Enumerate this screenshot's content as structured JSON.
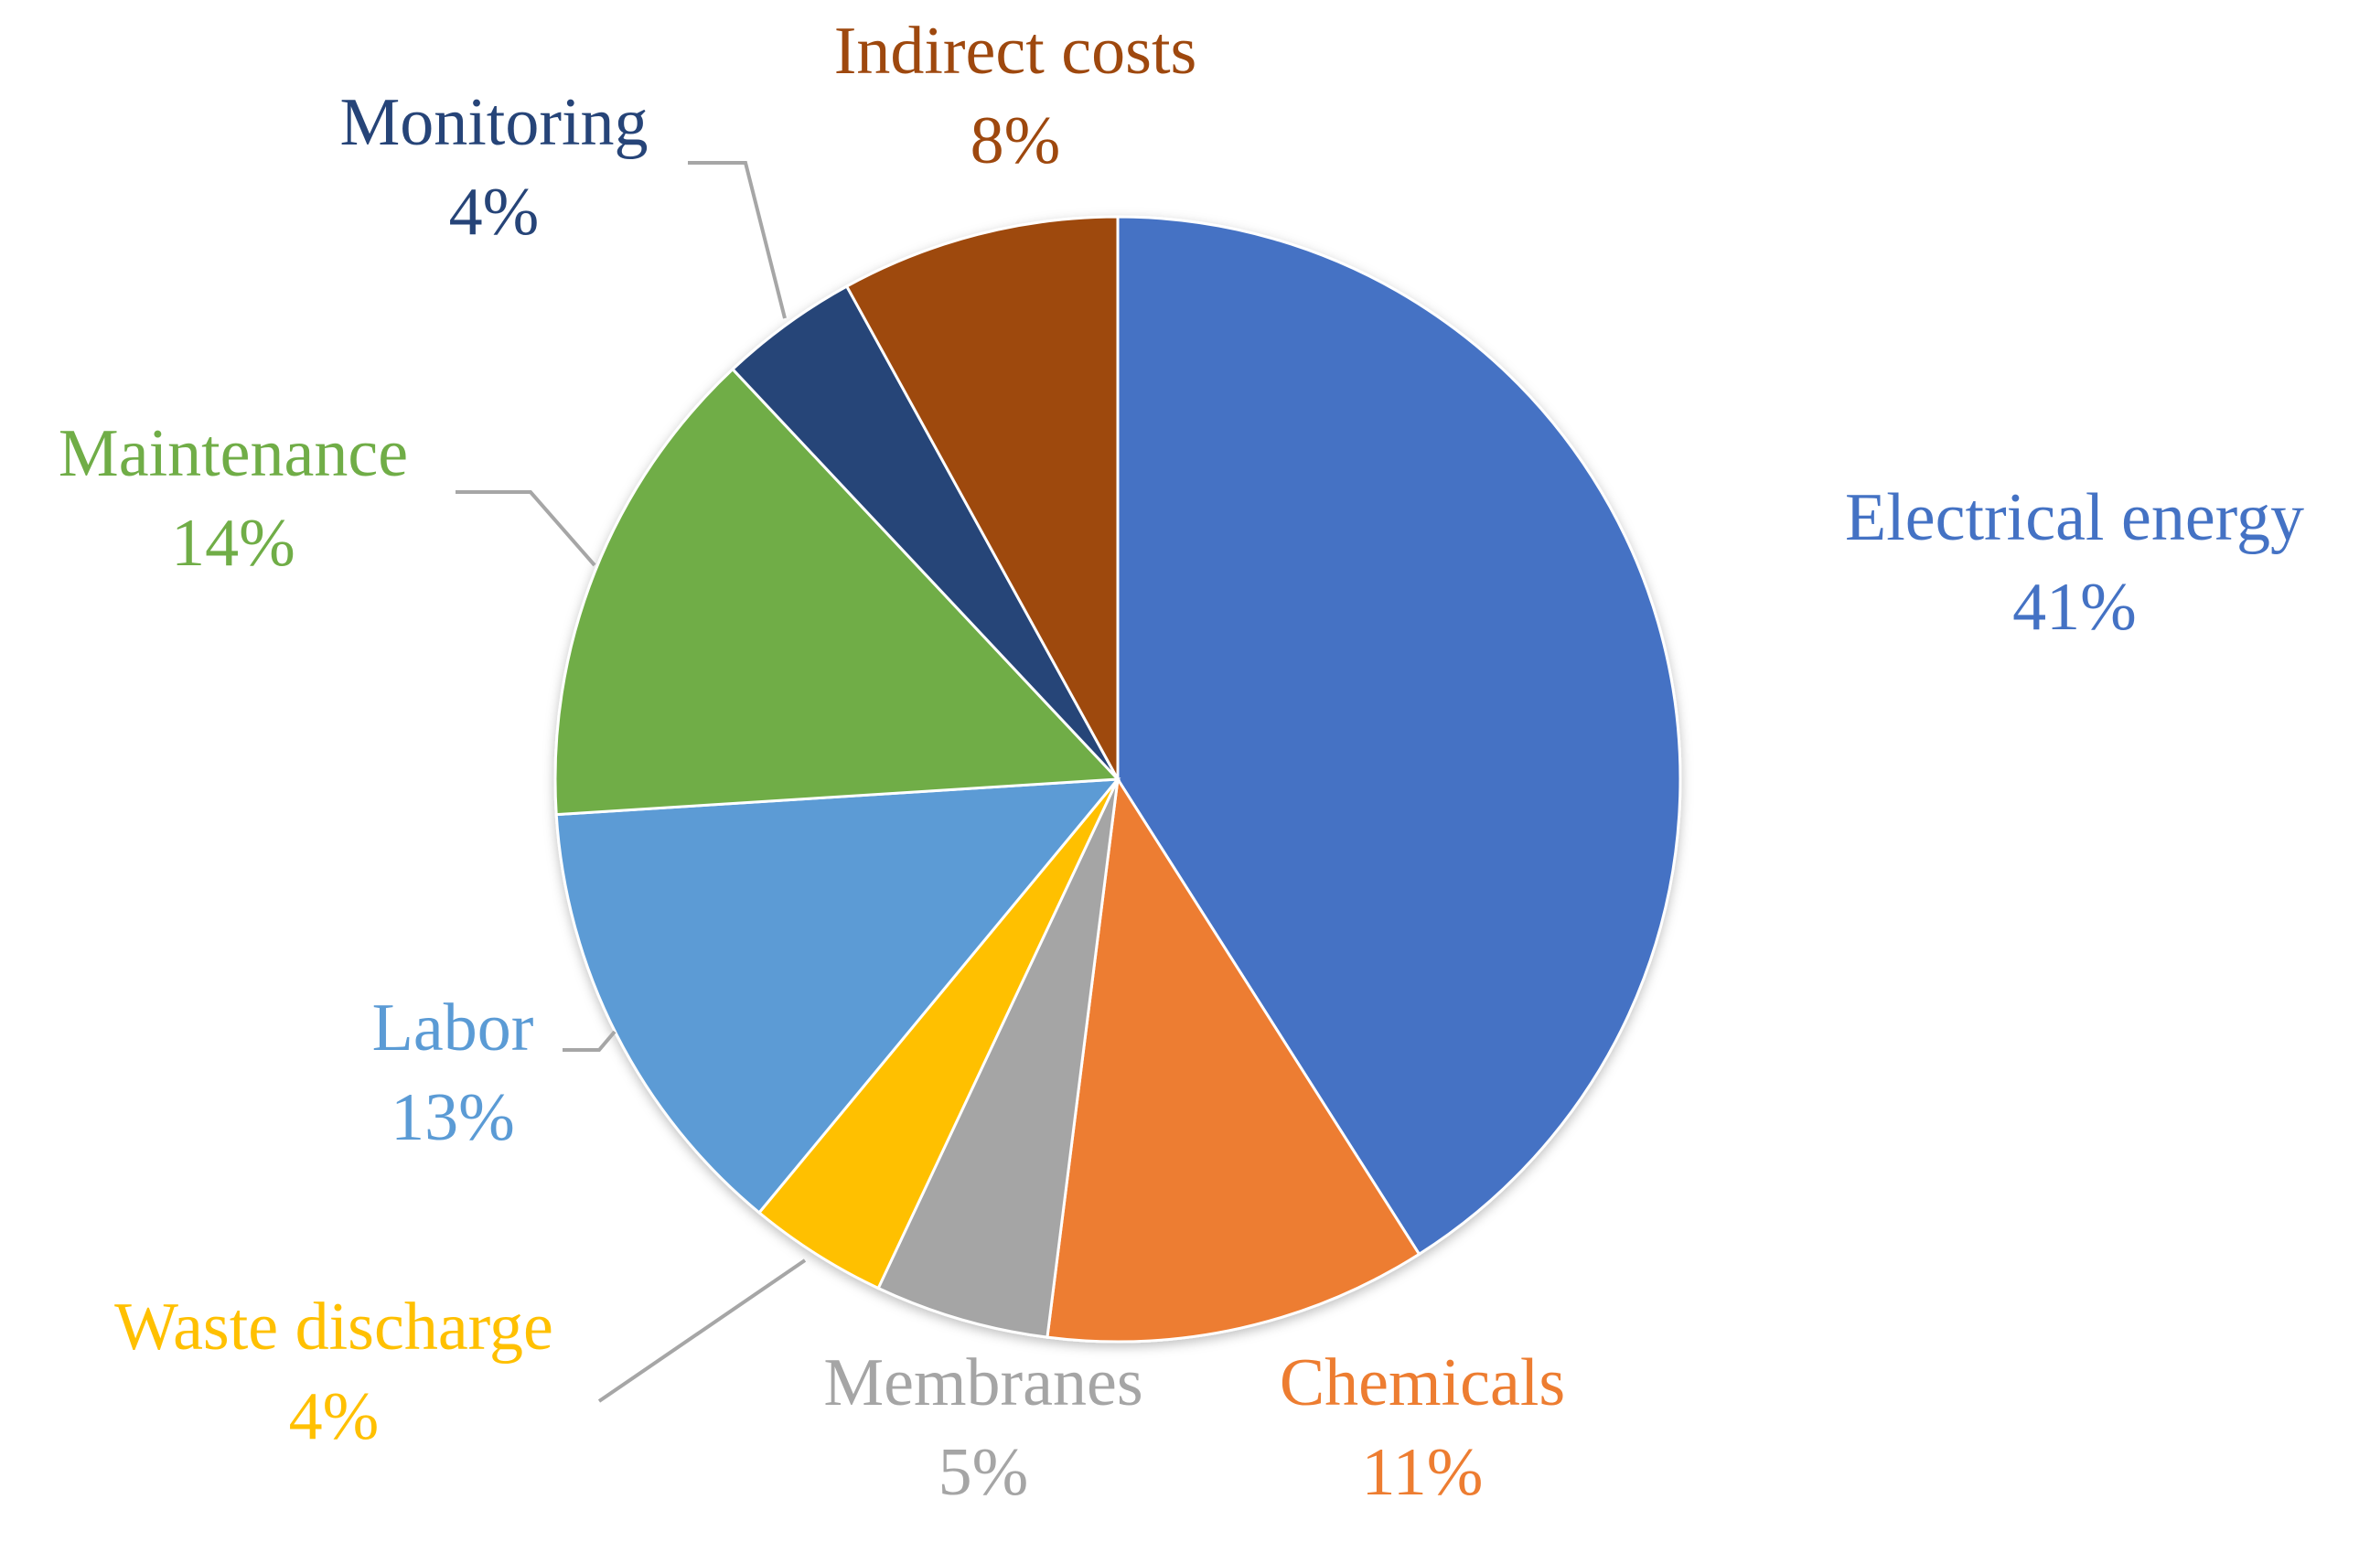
{
  "chart_data": {
    "type": "pie",
    "title": "",
    "start_angle_deg": 0,
    "direction": "clockwise",
    "slices": [
      {
        "name": "Electrical energy",
        "value": 41,
        "label": "41%",
        "color": "#4472C4",
        "label_color": "#4472C4"
      },
      {
        "name": "Chemicals",
        "value": 11,
        "label": "11%",
        "color": "#ED7D31",
        "label_color": "#ED7D31"
      },
      {
        "name": "Membranes",
        "value": 5,
        "label": "5%",
        "color": "#A5A5A5",
        "label_color": "#A5A5A5"
      },
      {
        "name": "Waste discharge",
        "value": 4,
        "label": "4%",
        "color": "#FFC000",
        "label_color": "#FFC000"
      },
      {
        "name": "Labor",
        "value": 13,
        "label": "13%",
        "color": "#5B9BD5",
        "label_color": "#5B9BD5"
      },
      {
        "name": "Maintenance",
        "value": 14,
        "label": "14%",
        "color": "#70AD47",
        "label_color": "#70AD47"
      },
      {
        "name": "Monitoring",
        "value": 4,
        "label": "4%",
        "color": "#264478",
        "label_color": "#264478"
      },
      {
        "name": "Indirect costs",
        "value": 8,
        "label": "8%",
        "color": "#9E480E",
        "label_color": "#9E480E"
      }
    ]
  }
}
